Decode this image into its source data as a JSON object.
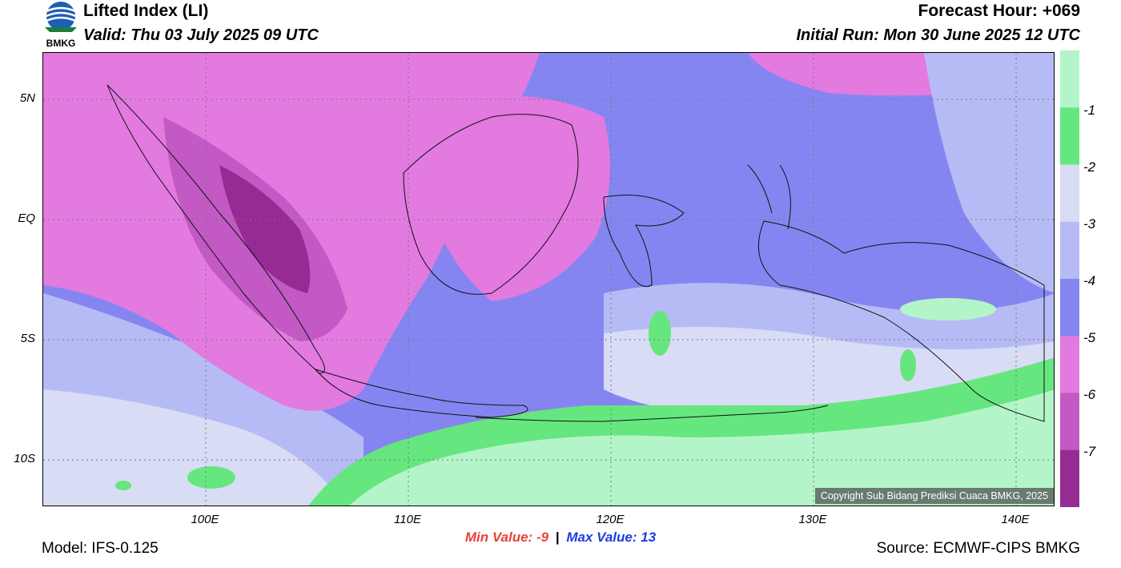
{
  "header": {
    "title": "Lifted Index (LI)",
    "valid": "Valid: Thu 03 July 2025 09 UTC",
    "forecast_hour": "Forecast Hour: +069",
    "initial_run": "Initial Run: Mon 30 June 2025 12 UTC"
  },
  "logo": {
    "text": "BMKG",
    "icon": "bmkg-logo-icon"
  },
  "axes": {
    "lat_labels": [
      "5N",
      "EQ",
      "5S",
      "10S"
    ],
    "lon_labels": [
      "100E",
      "110E",
      "120E",
      "130E",
      "140E"
    ]
  },
  "colorbar": {
    "labels": [
      "-1",
      "-2",
      "-3",
      "-4",
      "-5",
      "-6",
      "-7"
    ],
    "colors": [
      "#b3f5c8",
      "#66e67f",
      "#d8dcf5",
      "#b7bbf5",
      "#8585f2",
      "#e37ae0",
      "#c259c4",
      "#962b94"
    ]
  },
  "stats": {
    "min_label": "Min Value:",
    "min_value": "-9",
    "separator": "|",
    "max_label": "Max Value:",
    "max_value": "13"
  },
  "footer": {
    "model": "Model: IFS-0.125",
    "source": "Source: ECMWF-CIPS BMKG",
    "copyright": "Copyright Sub Bidang Prediksi Cuaca BMKG, 2025"
  }
}
